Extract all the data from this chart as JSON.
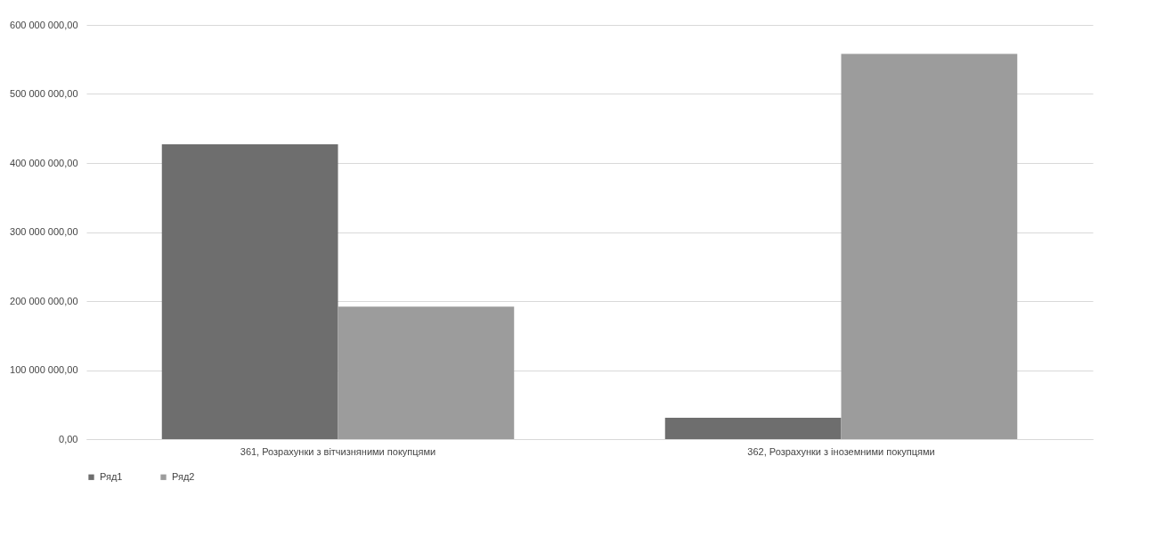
{
  "chart_data": {
    "type": "bar",
    "categories": [
      "361, Розрахунки з вітчизняними покупцями",
      "362, Розрахунки з іноземними покупцями"
    ],
    "series": [
      {
        "name": "Ряд1",
        "color": "#6e6e6e",
        "values": [
          427000000,
          31000000
        ]
      },
      {
        "name": "Ряд2",
        "color": "#9c9c9c",
        "values": [
          192000000,
          558000000
        ]
      }
    ],
    "ylim": [
      0,
      600000000
    ],
    "yticks": [
      {
        "value": 0,
        "label": "0,00"
      },
      {
        "value": 100000000,
        "label": "100 000 000,00"
      },
      {
        "value": 200000000,
        "label": "200 000 000,00"
      },
      {
        "value": 300000000,
        "label": "300 000 000,00"
      },
      {
        "value": 400000000,
        "label": "400 000 000,00"
      },
      {
        "value": 500000000,
        "label": "500 000 000,00"
      },
      {
        "value": 600000000,
        "label": "600 000 000,00"
      }
    ],
    "grid": "y",
    "legend": "bottom"
  }
}
